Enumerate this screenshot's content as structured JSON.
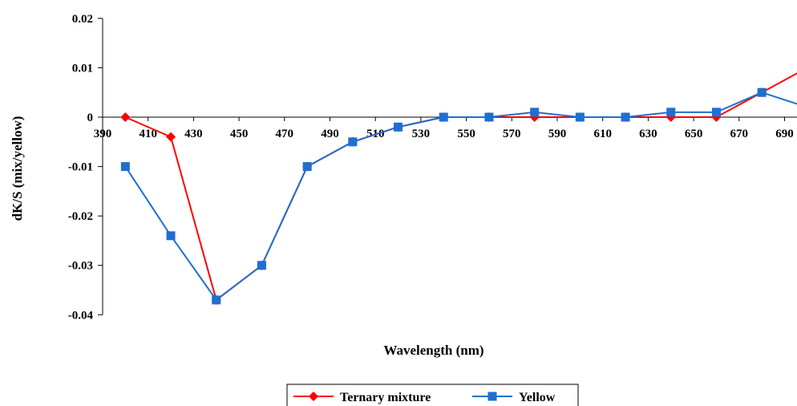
{
  "chart_data": {
    "type": "line",
    "title": "",
    "xlabel": "Wavelength (nm)",
    "ylabel": "dK/S (mix/yellow)",
    "xlim": [
      390,
      700
    ],
    "ylim": [
      -0.04,
      0.02
    ],
    "xticks": [
      390,
      410,
      430,
      450,
      470,
      490,
      510,
      530,
      550,
      570,
      590,
      610,
      630,
      650,
      670,
      690
    ],
    "yticks": [
      0.02,
      0.01,
      0,
      -0.01,
      -0.02,
      -0.03,
      -0.04
    ],
    "ytick_labels": [
      "0.02",
      "0.01",
      "0",
      "-0.01",
      "-0.02",
      "-0.03",
      "-0.04"
    ],
    "grid": false,
    "legend_position": "bottom",
    "series": [
      {
        "name": "Ternary mixture",
        "color": "#ff0000",
        "marker": "diamond",
        "x": [
          400,
          420,
          440,
          460,
          480,
          500,
          520,
          540,
          560,
          580,
          600,
          620,
          640,
          660,
          680,
          700
        ],
        "y": [
          0,
          -0.004,
          -0.037,
          -0.03,
          -0.01,
          -0.005,
          -0.002,
          0,
          0,
          0,
          0,
          0,
          0,
          0,
          0.005,
          0.01
        ]
      },
      {
        "name": "Yellow",
        "color": "#1f6fd1",
        "marker": "square",
        "x": [
          400,
          420,
          440,
          460,
          480,
          500,
          520,
          540,
          560,
          580,
          600,
          620,
          640,
          660,
          680,
          700
        ],
        "y": [
          -0.01,
          -0.024,
          -0.037,
          -0.03,
          -0.01,
          -0.005,
          -0.002,
          0,
          0,
          0.001,
          0,
          0,
          0.001,
          0.001,
          0.005,
          0.002
        ]
      }
    ]
  }
}
